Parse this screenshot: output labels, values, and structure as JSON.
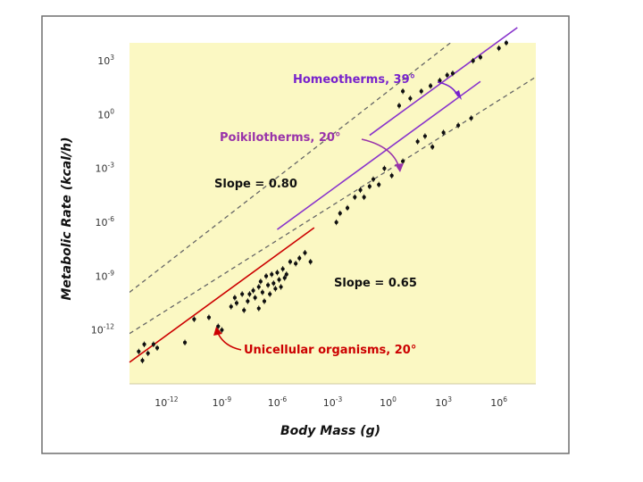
{
  "chart_data": {
    "type": "scatter",
    "xlabel": "Body Mass (g)",
    "ylabel": "Metabolic Rate (kcal/h)",
    "x_scale": "log",
    "y_scale": "log",
    "xlim": [
      1e-14,
      100000000.0
    ],
    "ylim": [
      1e-15,
      10000.0
    ],
    "grid": false,
    "x_ticks": [
      {
        "value": 1e-12,
        "base": "10",
        "exp": "-12"
      },
      {
        "value": 1e-09,
        "base": "10",
        "exp": "-9"
      },
      {
        "value": 1e-06,
        "base": "10",
        "exp": "-6"
      },
      {
        "value": 0.001,
        "base": "10",
        "exp": "-3"
      },
      {
        "value": 1.0,
        "base": "10",
        "exp": "0"
      },
      {
        "value": 1000.0,
        "base": "10",
        "exp": "3"
      },
      {
        "value": 1000000.0,
        "base": "10",
        "exp": "6"
      }
    ],
    "y_ticks": [
      {
        "value": 1e-12,
        "base": "10",
        "exp": "-12"
      },
      {
        "value": 1e-09,
        "base": "10",
        "exp": "-9"
      },
      {
        "value": 1e-06,
        "base": "10",
        "exp": "-6"
      },
      {
        "value": 0.001,
        "base": "10",
        "exp": "-3"
      },
      {
        "value": 1.0,
        "base": "10",
        "exp": "0"
      },
      {
        "value": 1000.0,
        "base": "10",
        "exp": "3"
      }
    ],
    "fit_lines": [
      {
        "name": "Unicellular organisms, 20°",
        "color": "#cc0000",
        "slope": 0.75,
        "intercept_log10": -3.3,
        "x_range": [
          1e-14,
          0.0001
        ]
      },
      {
        "name": "Poikilotherms, 20°",
        "color": "#8833cc",
        "slope": 0.75,
        "intercept_log10": -1.9,
        "x_range": [
          1e-06,
          100000.0
        ]
      },
      {
        "name": "Homeotherms, 39°",
        "color": "#8833cc",
        "slope": 0.75,
        "intercept_log10": -0.4,
        "x_range": [
          0.1,
          10000000.0
        ]
      }
    ],
    "reference_lines": [
      {
        "label": "Slope = 0.80",
        "slope": 0.8,
        "intercept_log10": 1.3,
        "style": "dashed"
      },
      {
        "label": "Slope = 0.65",
        "slope": 0.65,
        "intercept_log10": -3.1,
        "style": "dashed"
      }
    ],
    "annotations": [
      {
        "text": "Homeotherms, 39°",
        "color": "#7722cc"
      },
      {
        "text": "Poikilotherms, 20°",
        "color": "#9933aa"
      },
      {
        "text": "Unicellular organisms, 20°",
        "color": "#cc0000"
      },
      {
        "text": "Slope = 0.80",
        "color": "#111111"
      },
      {
        "text": "Slope = 0.65",
        "color": "#111111"
      }
    ],
    "series": [
      {
        "group": "unicellular",
        "points": [
          [
            -13.5,
            -13.2
          ],
          [
            -13.3,
            -13.7
          ],
          [
            -13.0,
            -13.3
          ],
          [
            -12.7,
            -12.8
          ],
          [
            -12.5,
            -13.0
          ],
          [
            -13.2,
            -12.8
          ],
          [
            -11.0,
            -12.7
          ],
          [
            -10.5,
            -11.4
          ],
          [
            -9.7,
            -11.3
          ],
          [
            -9.0,
            -12.0
          ],
          [
            -9.2,
            -11.8
          ],
          [
            -8.5,
            -10.7
          ],
          [
            -8.2,
            -10.5
          ],
          [
            -8.3,
            -10.2
          ],
          [
            -7.9,
            -10.0
          ],
          [
            -7.8,
            -10.9
          ],
          [
            -7.6,
            -10.4
          ],
          [
            -7.5,
            -10.0
          ],
          [
            -7.3,
            -9.8
          ],
          [
            -7.2,
            -10.2
          ],
          [
            -7.0,
            -9.6
          ],
          [
            -7.0,
            -10.8
          ],
          [
            -6.9,
            -9.3
          ],
          [
            -6.8,
            -9.9
          ],
          [
            -6.7,
            -10.4
          ],
          [
            -6.6,
            -9.0
          ],
          [
            -6.5,
            -9.5
          ],
          [
            -6.4,
            -10.0
          ],
          [
            -6.3,
            -8.9
          ],
          [
            -6.2,
            -9.4
          ],
          [
            -6.1,
            -9.7
          ],
          [
            -6.0,
            -8.8
          ],
          [
            -5.9,
            -9.2
          ],
          [
            -5.8,
            -9.6
          ],
          [
            -5.7,
            -8.6
          ],
          [
            -5.6,
            -9.1
          ],
          [
            -5.5,
            -8.9
          ],
          [
            -5.3,
            -8.2
          ],
          [
            -5.0,
            -8.3
          ],
          [
            -4.8,
            -8.0
          ],
          [
            -4.5,
            -7.7
          ],
          [
            -4.2,
            -8.2
          ]
        ]
      },
      {
        "group": "poikilotherms",
        "points": [
          [
            -2.8,
            -6.0
          ],
          [
            -2.6,
            -5.5
          ],
          [
            -2.2,
            -5.2
          ],
          [
            -1.8,
            -4.6
          ],
          [
            -1.5,
            -4.2
          ],
          [
            -1.3,
            -4.6
          ],
          [
            -1.0,
            -4.0
          ],
          [
            -0.8,
            -3.6
          ],
          [
            -0.5,
            -3.9
          ],
          [
            -0.2,
            -3.0
          ],
          [
            0.2,
            -3.4
          ],
          [
            0.8,
            -2.6
          ],
          [
            1.6,
            -1.5
          ],
          [
            2.0,
            -1.2
          ],
          [
            2.4,
            -1.8
          ],
          [
            3.0,
            -1.0
          ],
          [
            3.8,
            -0.6
          ],
          [
            4.5,
            -0.2
          ]
        ]
      },
      {
        "group": "homeotherms",
        "points": [
          [
            0.6,
            0.5
          ],
          [
            0.8,
            1.3
          ],
          [
            1.2,
            0.9
          ],
          [
            1.8,
            1.3
          ],
          [
            2.3,
            1.6
          ],
          [
            2.8,
            1.9
          ],
          [
            3.2,
            2.2
          ],
          [
            3.5,
            2.3
          ],
          [
            4.6,
            3.0
          ],
          [
            5.0,
            3.2
          ],
          [
            6.0,
            3.7
          ],
          [
            6.4,
            4.0
          ]
        ]
      }
    ]
  }
}
